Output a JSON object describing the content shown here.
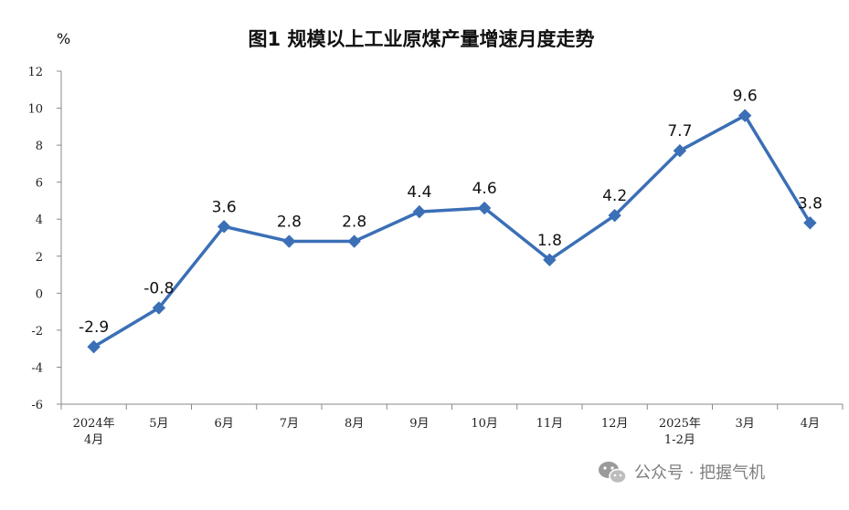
{
  "chart_data": {
    "type": "line",
    "title": "图1  规模以上工业原煤产量增速月度走势",
    "ylabel": "%",
    "xlabel": "",
    "categories": [
      "2024年\n4月",
      "5月",
      "6月",
      "7月",
      "8月",
      "9月",
      "10月",
      "11月",
      "12月",
      "2025年\n1-2月",
      "3月",
      "4月"
    ],
    "values": [
      -2.9,
      -0.8,
      3.6,
      2.8,
      2.8,
      4.4,
      4.6,
      1.8,
      4.2,
      7.7,
      9.6,
      3.8
    ],
    "data_labels": [
      "-2.9",
      "-0.8",
      "3.6",
      "2.8",
      "2.8",
      "4.4",
      "4.6",
      "1.8",
      "4.2",
      "7.7",
      "9.6",
      "3.8"
    ],
    "ylim": [
      -6,
      12
    ],
    "yticks": [
      -6,
      -4,
      -2,
      0,
      2,
      4,
      6,
      8,
      10,
      12
    ],
    "grid": false,
    "legend": "none",
    "colors": {
      "series": "#3b6fb6",
      "axis": "#888888"
    }
  },
  "watermark": {
    "text": "公众号 · 把握气机",
    "icon": "wechat-icon"
  }
}
